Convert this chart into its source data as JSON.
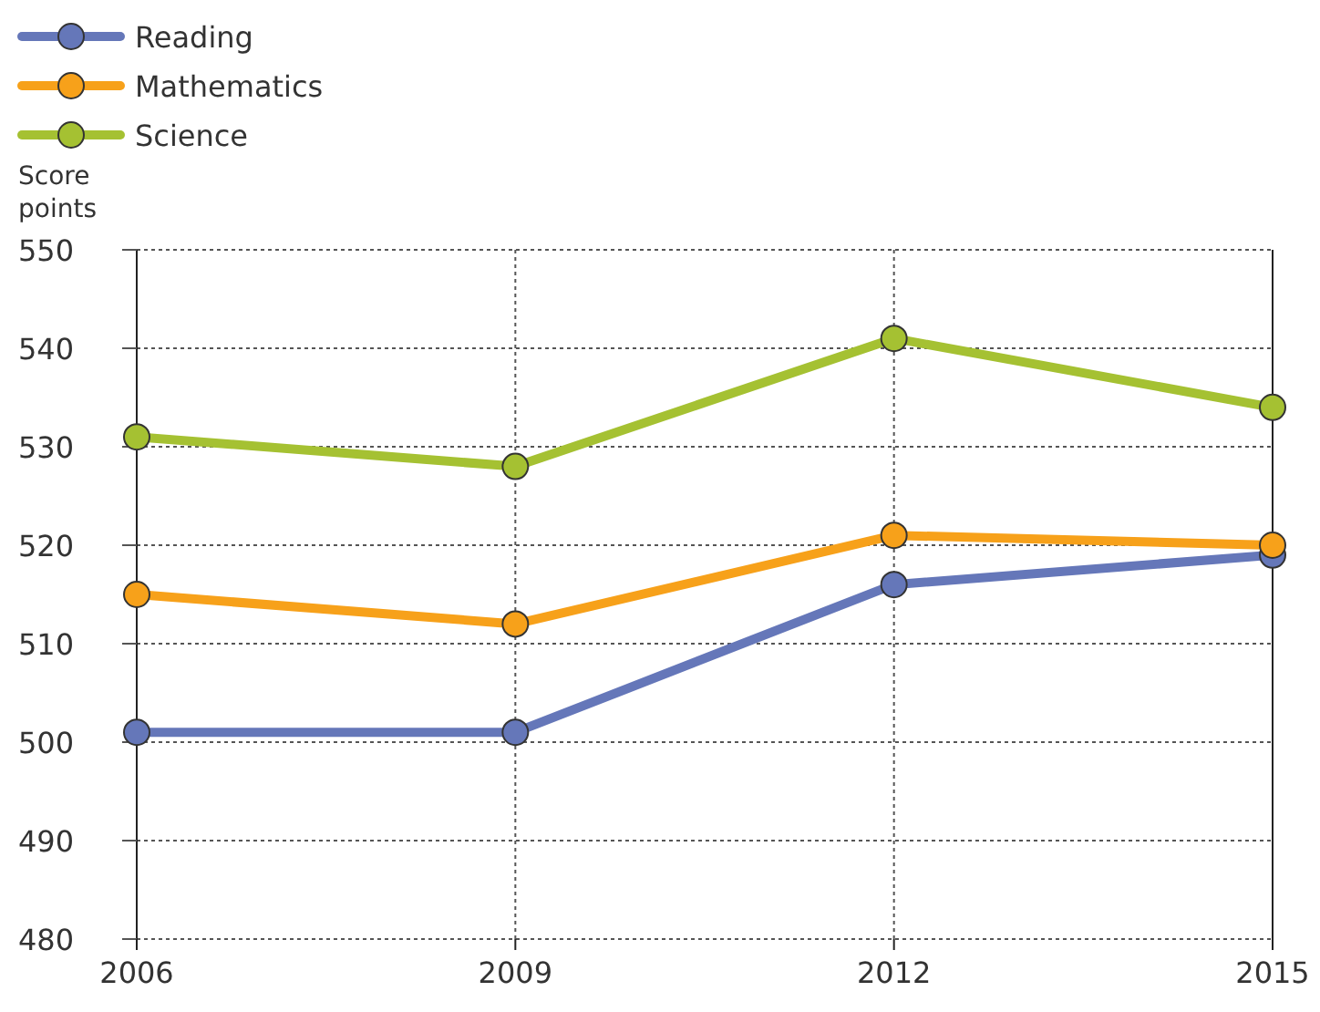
{
  "chart_data": {
    "type": "line",
    "ylabel": "Score points",
    "x": [
      2006,
      2009,
      2012,
      2015
    ],
    "xlim": [
      2006,
      2015
    ],
    "xticks": [
      2006,
      2009,
      2012,
      2015
    ],
    "ylim": [
      480,
      550
    ],
    "yticks": [
      480,
      490,
      500,
      510,
      520,
      530,
      540,
      550
    ],
    "grid": true,
    "legend": "top left",
    "marker": "circle",
    "line_style": "solid",
    "series": [
      {
        "name": "Reading",
        "color": "#6577b9",
        "values": [
          501,
          501,
          516,
          519
        ]
      },
      {
        "name": "Mathematics",
        "color": "#f7a11a",
        "values": [
          515,
          512,
          521,
          520
        ]
      },
      {
        "name": "Science",
        "color": "#a5c132",
        "values": [
          531,
          528,
          541,
          534
        ]
      }
    ]
  }
}
